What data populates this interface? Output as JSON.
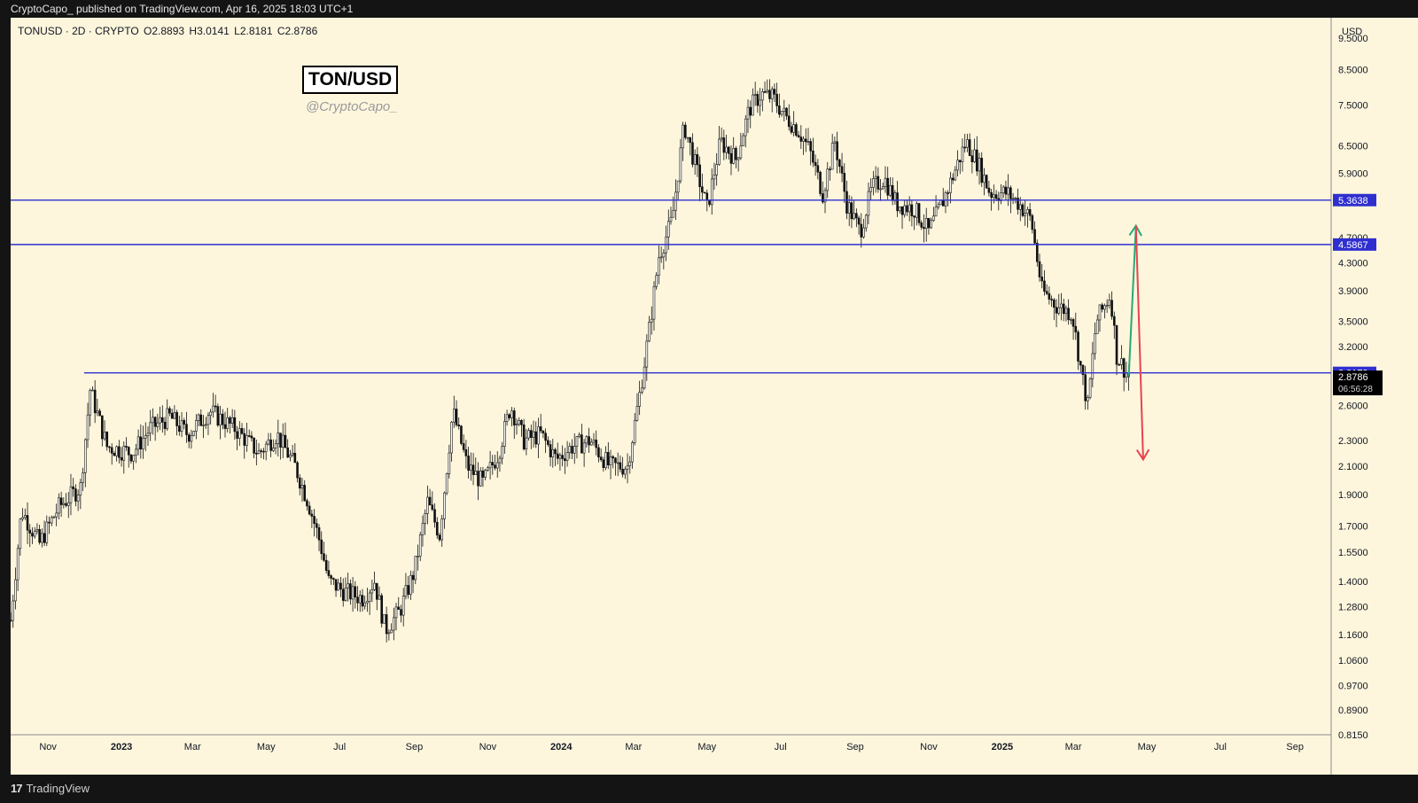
{
  "header": {
    "publish_line": "CryptoCapo_ published on TradingView.com, Apr 16, 2025 18:03 UTC+1"
  },
  "legend": {
    "symbol": "TONUSD · 2D · CRYPTO",
    "open": "O2.8893",
    "high": "H3.0141",
    "low": "L2.8181",
    "close": "C2.8786"
  },
  "annotation": {
    "title": "TON/USD",
    "handle": "@CryptoCapo_"
  },
  "footer": {
    "brand": "TradingView"
  },
  "colors": {
    "background": "#fdf6dd",
    "level_line": "#2f2fcf",
    "up_arrow": "#2aa876",
    "down_arrow": "#e8434f",
    "candle": "#111111"
  },
  "chart_data": {
    "type": "candlestick",
    "title": "TON/USD",
    "yaxis": {
      "label": "USD",
      "scale": "log",
      "ylim": [
        0.815,
        10.2
      ],
      "ticks": [
        "9.5000",
        "8.5000",
        "7.5000",
        "6.5000",
        "5.9000",
        "4.7000",
        "4.3000",
        "3.9000",
        "3.5000",
        "3.2000",
        "2.6000",
        "2.3000",
        "2.1000",
        "1.9000",
        "1.7000",
        "1.5500",
        "1.4000",
        "1.2800",
        "1.1600",
        "1.0600",
        "0.9700",
        "0.8900",
        "0.8150"
      ]
    },
    "xaxis": {
      "ticks": [
        {
          "label": "Nov",
          "date": "2022-11-01",
          "bold": false
        },
        {
          "label": "2023",
          "date": "2023-01-01",
          "bold": true
        },
        {
          "label": "Mar",
          "date": "2023-03-01",
          "bold": false
        },
        {
          "label": "May",
          "date": "2023-05-01",
          "bold": false
        },
        {
          "label": "Jul",
          "date": "2023-07-01",
          "bold": false
        },
        {
          "label": "Sep",
          "date": "2023-09-01",
          "bold": false
        },
        {
          "label": "Nov",
          "date": "2023-11-01",
          "bold": false
        },
        {
          "label": "2024",
          "date": "2024-01-01",
          "bold": true
        },
        {
          "label": "Mar",
          "date": "2024-03-01",
          "bold": false
        },
        {
          "label": "May",
          "date": "2024-05-01",
          "bold": false
        },
        {
          "label": "Jul",
          "date": "2024-07-01",
          "bold": false
        },
        {
          "label": "Sep",
          "date": "2024-09-01",
          "bold": false
        },
        {
          "label": "Nov",
          "date": "2024-11-01",
          "bold": false
        },
        {
          "label": "2025",
          "date": "2025-01-01",
          "bold": true
        },
        {
          "label": "Mar",
          "date": "2025-03-01",
          "bold": false
        },
        {
          "label": "May",
          "date": "2025-05-01",
          "bold": false
        },
        {
          "label": "Jul",
          "date": "2025-07-01",
          "bold": false
        },
        {
          "label": "Sep",
          "date": "2025-09-01",
          "bold": false
        }
      ]
    },
    "levels": [
      {
        "value": 5.3638,
        "label": "5.3638"
      },
      {
        "value": 4.5867,
        "label": "4.5867"
      },
      {
        "value": 2.9179,
        "label": "2.9179",
        "start_date": "2022-12-01"
      }
    ],
    "last_price": {
      "value": 2.8786,
      "label": "2.8786",
      "countdown": "06:56:28"
    },
    "arrows": [
      {
        "direction": "up",
        "from": {
          "date": "2025-04-16",
          "value": 2.88
        },
        "to": {
          "date": "2025-04-22",
          "value": 4.9
        }
      },
      {
        "direction": "down",
        "from": {
          "date": "2025-04-22",
          "value": 4.9
        },
        "to": {
          "date": "2025-04-28",
          "value": 2.15
        }
      }
    ],
    "price_path": [
      {
        "date": "2022-10-01",
        "value": 1.22
      },
      {
        "date": "2022-10-10",
        "value": 1.8
      },
      {
        "date": "2022-10-25",
        "value": 1.6
      },
      {
        "date": "2022-11-10",
        "value": 1.82
      },
      {
        "date": "2022-11-28",
        "value": 1.95
      },
      {
        "date": "2022-12-06",
        "value": 2.75
      },
      {
        "date": "2022-12-20",
        "value": 2.25
      },
      {
        "date": "2023-01-10",
        "value": 2.2
      },
      {
        "date": "2023-01-25",
        "value": 2.4
      },
      {
        "date": "2023-02-10",
        "value": 2.5
      },
      {
        "date": "2023-02-25",
        "value": 2.35
      },
      {
        "date": "2023-03-15",
        "value": 2.55
      },
      {
        "date": "2023-04-05",
        "value": 2.4
      },
      {
        "date": "2023-04-25",
        "value": 2.2
      },
      {
        "date": "2023-05-10",
        "value": 2.35
      },
      {
        "date": "2023-05-25",
        "value": 2.1
      },
      {
        "date": "2023-06-05",
        "value": 1.85
      },
      {
        "date": "2023-06-15",
        "value": 1.6
      },
      {
        "date": "2023-06-22",
        "value": 1.4
      },
      {
        "date": "2023-07-05",
        "value": 1.35
      },
      {
        "date": "2023-07-20",
        "value": 1.32
      },
      {
        "date": "2023-07-30",
        "value": 1.4
      },
      {
        "date": "2023-08-08",
        "value": 1.18
      },
      {
        "date": "2023-08-20",
        "value": 1.26
      },
      {
        "date": "2023-09-01",
        "value": 1.45
      },
      {
        "date": "2023-09-12",
        "value": 1.85
      },
      {
        "date": "2023-09-22",
        "value": 1.65
      },
      {
        "date": "2023-10-03",
        "value": 2.55
      },
      {
        "date": "2023-10-15",
        "value": 2.1
      },
      {
        "date": "2023-10-28",
        "value": 1.98
      },
      {
        "date": "2023-11-10",
        "value": 2.2
      },
      {
        "date": "2023-11-20",
        "value": 2.6
      },
      {
        "date": "2023-12-01",
        "value": 2.3
      },
      {
        "date": "2023-12-15",
        "value": 2.35
      },
      {
        "date": "2023-12-28",
        "value": 2.15
      },
      {
        "date": "2024-01-10",
        "value": 2.25
      },
      {
        "date": "2024-01-25",
        "value": 2.3
      },
      {
        "date": "2024-02-10",
        "value": 2.1
      },
      {
        "date": "2024-02-25",
        "value": 2.1
      },
      {
        "date": "2024-03-06",
        "value": 2.7
      },
      {
        "date": "2024-03-14",
        "value": 3.4
      },
      {
        "date": "2024-03-22",
        "value": 4.4
      },
      {
        "date": "2024-04-02",
        "value": 5.0
      },
      {
        "date": "2024-04-12",
        "value": 7.0
      },
      {
        "date": "2024-04-22",
        "value": 6.0
      },
      {
        "date": "2024-05-01",
        "value": 5.2
      },
      {
        "date": "2024-05-12",
        "value": 6.6
      },
      {
        "date": "2024-05-25",
        "value": 6.2
      },
      {
        "date": "2024-06-05",
        "value": 7.4
      },
      {
        "date": "2024-06-15",
        "value": 7.8
      },
      {
        "date": "2024-06-25",
        "value": 7.7
      },
      {
        "date": "2024-07-05",
        "value": 7.2
      },
      {
        "date": "2024-07-15",
        "value": 6.9
      },
      {
        "date": "2024-07-25",
        "value": 6.4
      },
      {
        "date": "2024-08-05",
        "value": 5.5
      },
      {
        "date": "2024-08-15",
        "value": 6.6
      },
      {
        "date": "2024-08-25",
        "value": 5.3
      },
      {
        "date": "2024-09-05",
        "value": 4.8
      },
      {
        "date": "2024-09-15",
        "value": 5.6
      },
      {
        "date": "2024-09-25",
        "value": 5.8
      },
      {
        "date": "2024-10-05",
        "value": 5.3
      },
      {
        "date": "2024-10-20",
        "value": 5.2
      },
      {
        "date": "2024-11-01",
        "value": 4.8
      },
      {
        "date": "2024-11-12",
        "value": 5.3
      },
      {
        "date": "2024-11-22",
        "value": 5.9
      },
      {
        "date": "2024-12-02",
        "value": 6.6
      },
      {
        "date": "2024-12-12",
        "value": 6.1
      },
      {
        "date": "2024-12-22",
        "value": 5.5
      },
      {
        "date": "2025-01-05",
        "value": 5.5
      },
      {
        "date": "2025-01-15",
        "value": 5.3
      },
      {
        "date": "2025-01-25",
        "value": 5.0
      },
      {
        "date": "2025-02-03",
        "value": 3.9
      },
      {
        "date": "2025-02-15",
        "value": 3.7
      },
      {
        "date": "2025-02-28",
        "value": 3.6
      },
      {
        "date": "2025-03-08",
        "value": 2.9
      },
      {
        "date": "2025-03-13",
        "value": 2.6
      },
      {
        "date": "2025-03-20",
        "value": 3.5
      },
      {
        "date": "2025-04-01",
        "value": 3.85
      },
      {
        "date": "2025-04-06",
        "value": 3.1
      },
      {
        "date": "2025-04-16",
        "value": 2.88
      }
    ]
  }
}
